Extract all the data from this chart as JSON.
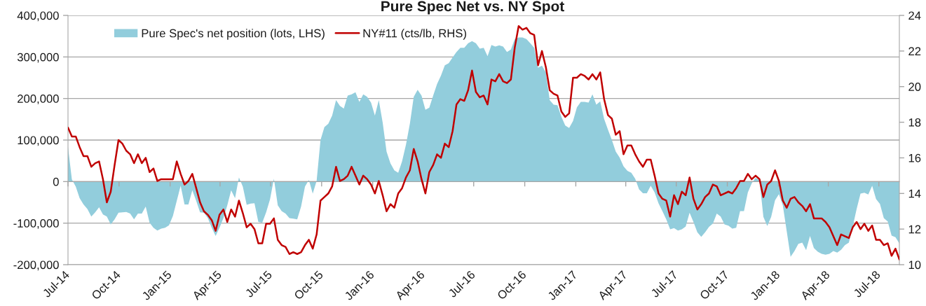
{
  "chart_data": {
    "type": "area",
    "title": "Pure Spec Net vs. NY Spot",
    "x": [
      "2014-07-01",
      "2014-07-08",
      "2014-07-15",
      "2014-07-22",
      "2014-07-29",
      "2014-08-05",
      "2014-08-12",
      "2014-08-19",
      "2014-08-26",
      "2014-09-02",
      "2014-09-09",
      "2014-09-16",
      "2014-09-23",
      "2014-09-30",
      "2014-10-07",
      "2014-10-14",
      "2014-10-21",
      "2014-10-28",
      "2014-11-04",
      "2014-11-11",
      "2014-11-18",
      "2014-11-25",
      "2014-12-02",
      "2014-12-09",
      "2014-12-16",
      "2014-12-23",
      "2014-12-30",
      "2015-01-06",
      "2015-01-13",
      "2015-01-20",
      "2015-01-27",
      "2015-02-03",
      "2015-02-10",
      "2015-02-17",
      "2015-02-24",
      "2015-03-03",
      "2015-03-10",
      "2015-03-17",
      "2015-03-24",
      "2015-03-31",
      "2015-04-07",
      "2015-04-14",
      "2015-04-21",
      "2015-04-28",
      "2015-05-05",
      "2015-05-12",
      "2015-05-19",
      "2015-05-26",
      "2015-06-02",
      "2015-06-09",
      "2015-06-16",
      "2015-06-23",
      "2015-06-30",
      "2015-07-07",
      "2015-07-14",
      "2015-07-21",
      "2015-07-28",
      "2015-08-04",
      "2015-08-11",
      "2015-08-18",
      "2015-08-25",
      "2015-09-01",
      "2015-09-08",
      "2015-09-15",
      "2015-09-22",
      "2015-09-29",
      "2015-10-06",
      "2015-10-13",
      "2015-10-20",
      "2015-10-27",
      "2015-11-03",
      "2015-11-10",
      "2015-11-17",
      "2015-11-24",
      "2015-12-01",
      "2015-12-08",
      "2015-12-15",
      "2015-12-22",
      "2015-12-29",
      "2016-01-05",
      "2016-01-12",
      "2016-01-19",
      "2016-01-26",
      "2016-02-02",
      "2016-02-09",
      "2016-02-16",
      "2016-02-23",
      "2016-03-01",
      "2016-03-08",
      "2016-03-15",
      "2016-03-22",
      "2016-03-29",
      "2016-04-05",
      "2016-04-12",
      "2016-04-19",
      "2016-04-26",
      "2016-05-03",
      "2016-05-10",
      "2016-05-17",
      "2016-05-24",
      "2016-05-31",
      "2016-06-07",
      "2016-06-14",
      "2016-06-21",
      "2016-06-28",
      "2016-07-05",
      "2016-07-12",
      "2016-07-19",
      "2016-07-26",
      "2016-08-02",
      "2016-08-09",
      "2016-08-16",
      "2016-08-23",
      "2016-08-30",
      "2016-09-06",
      "2016-09-13",
      "2016-09-20",
      "2016-09-27",
      "2016-10-04",
      "2016-10-11",
      "2016-10-18",
      "2016-10-25",
      "2016-11-01",
      "2016-11-08",
      "2016-11-15",
      "2016-11-22",
      "2016-11-29",
      "2016-12-06",
      "2016-12-13",
      "2016-12-20",
      "2016-12-27",
      "2017-01-03",
      "2017-01-10",
      "2017-01-17",
      "2017-01-24",
      "2017-01-31",
      "2017-02-07",
      "2017-02-14",
      "2017-02-21",
      "2017-02-28",
      "2017-03-07",
      "2017-03-14",
      "2017-03-21",
      "2017-03-28",
      "2017-04-04",
      "2017-04-11",
      "2017-04-18",
      "2017-04-25",
      "2017-05-02",
      "2017-05-09",
      "2017-05-16",
      "2017-05-23",
      "2017-05-30",
      "2017-06-06",
      "2017-06-13",
      "2017-06-20",
      "2017-06-27",
      "2017-07-04",
      "2017-07-11",
      "2017-07-18",
      "2017-07-25",
      "2017-08-01",
      "2017-08-08",
      "2017-08-15",
      "2017-08-22",
      "2017-08-29",
      "2017-09-05",
      "2017-09-12",
      "2017-09-19",
      "2017-09-26",
      "2017-10-03",
      "2017-10-10",
      "2017-10-17",
      "2017-10-24",
      "2017-10-31",
      "2017-11-07",
      "2017-11-14",
      "2017-11-21",
      "2017-11-28",
      "2017-12-05",
      "2017-12-12",
      "2017-12-19",
      "2017-12-26",
      "2018-01-02",
      "2018-01-09",
      "2018-01-16",
      "2018-01-23",
      "2018-01-30",
      "2018-02-06",
      "2018-02-13",
      "2018-02-20",
      "2018-02-27",
      "2018-03-06",
      "2018-03-13",
      "2018-03-20",
      "2018-03-27",
      "2018-04-03",
      "2018-04-10",
      "2018-04-17",
      "2018-04-24",
      "2018-05-01",
      "2018-05-08",
      "2018-05-15",
      "2018-05-22",
      "2018-05-29",
      "2018-06-05",
      "2018-06-12",
      "2018-06-19",
      "2018-06-26",
      "2018-07-03",
      "2018-07-10",
      "2018-07-17",
      "2018-07-24",
      "2018-07-31",
      "2018-08-07"
    ],
    "series": [
      {
        "name": "Pure Spec's net position (lots, LHS)",
        "color": "#92cddc",
        "values": [
          83000,
          5000,
          -12000,
          -40000,
          -55000,
          -66000,
          -84000,
          -74000,
          -62000,
          -79000,
          -84000,
          -103000,
          -91000,
          -75000,
          -74000,
          -73000,
          -77000,
          -91000,
          -77000,
          -77000,
          -60000,
          -99000,
          -111000,
          -118000,
          -113000,
          -111000,
          -105000,
          -83000,
          -46000,
          -10000,
          -55000,
          -55000,
          -21000,
          -46000,
          -74000,
          -75000,
          -88000,
          -111000,
          -131000,
          -111000,
          -88000,
          -57000,
          -21000,
          -40000,
          10000,
          -12000,
          -56000,
          -53000,
          -52000,
          -97000,
          -99000,
          -74000,
          -43000,
          7000,
          -57000,
          -71000,
          -77000,
          -88000,
          -89000,
          -91000,
          -60000,
          -12000,
          4000,
          -29000,
          2000,
          100000,
          131000,
          139000,
          159000,
          196000,
          182000,
          176000,
          207000,
          210000,
          215000,
          192000,
          210000,
          204000,
          190000,
          159000,
          196000,
          142000,
          72000,
          44000,
          27000,
          21000,
          49000,
          89000,
          139000,
          204000,
          221000,
          207000,
          173000,
          178000,
          207000,
          235000,
          255000,
          280000,
          285000,
          299000,
          312000,
          322000,
          322000,
          333000,
          338000,
          333000,
          320000,
          322000,
          302000,
          329000,
          325000,
          328000,
          325000,
          312000,
          318000,
          343000,
          347000,
          347000,
          343000,
          333000,
          322000,
          274000,
          279000,
          263000,
          196000,
          185000,
          184000,
          156000,
          135000,
          129000,
          146000,
          179000,
          192000,
          192000,
          190000,
          210000,
          185000,
          193000,
          151000,
          125000,
          100000,
          72000,
          58000,
          37000,
          26000,
          21000,
          7000,
          -19000,
          -28000,
          -28000,
          -10000,
          -26000,
          -52000,
          -71000,
          -91000,
          -115000,
          -112000,
          -118000,
          -115000,
          -108000,
          -75000,
          -97000,
          -122000,
          -133000,
          -122000,
          -109000,
          -101000,
          -77000,
          -84000,
          -103000,
          -106000,
          -113000,
          -111000,
          -71000,
          -71000,
          -26000,
          -4000,
          9000,
          3000,
          -85000,
          -107000,
          -85000,
          -45000,
          -30000,
          -57000,
          -119000,
          -181000,
          -167000,
          -150000,
          -147000,
          -165000,
          -131000,
          -160000,
          -169000,
          -174000,
          -176000,
          -174000,
          -167000,
          -171000,
          -164000,
          -153000,
          -147000,
          -108000,
          -66000,
          -29000,
          -27000,
          -31000,
          -10000,
          -42000,
          -54000,
          -88000,
          -96000,
          -130000,
          -134000,
          -149000
        ]
      },
      {
        "name": "NY#11 (cts/lb, RHS)",
        "type": "line",
        "axis": "y2",
        "color": "#c00000",
        "values": [
          17.7,
          17.2,
          17.2,
          16.6,
          16.1,
          16.1,
          15.5,
          15.7,
          15.8,
          14.8,
          13.5,
          14.1,
          15.6,
          17.0,
          16.8,
          16.4,
          16.2,
          15.7,
          16.2,
          15.7,
          16.0,
          15.2,
          15.4,
          14.7,
          14.8,
          14.8,
          14.8,
          14.8,
          15.8,
          15.1,
          14.5,
          14.7,
          15.1,
          14.3,
          13.5,
          13.0,
          12.8,
          12.5,
          11.9,
          12.8,
          13.1,
          12.4,
          13.1,
          12.7,
          13.6,
          12.9,
          12.1,
          12.3,
          12.0,
          11.2,
          11.2,
          12.3,
          12.3,
          12.6,
          11.4,
          11.1,
          11.0,
          10.6,
          10.7,
          10.6,
          10.7,
          11.1,
          11.4,
          10.9,
          11.7,
          13.6,
          13.8,
          14.0,
          14.4,
          15.5,
          14.7,
          14.8,
          15.0,
          15.5,
          15.0,
          14.5,
          15.0,
          14.8,
          14.5,
          14.0,
          14.7,
          13.9,
          13.0,
          13.4,
          13.2,
          14.0,
          14.3,
          14.9,
          15.3,
          16.5,
          15.8,
          14.8,
          14.0,
          15.2,
          15.6,
          16.2,
          16.0,
          16.8,
          16.6,
          17.5,
          19.0,
          19.3,
          19.2,
          19.8,
          20.9,
          19.7,
          19.4,
          19.5,
          19.0,
          20.4,
          20.3,
          20.7,
          20.3,
          20.2,
          20.4,
          22.2,
          23.4,
          23.2,
          23.3,
          23.0,
          22.9,
          21.2,
          22.0,
          21.1,
          19.8,
          19.6,
          19.5,
          18.6,
          18.3,
          18.5,
          20.5,
          20.5,
          20.7,
          20.6,
          20.4,
          20.7,
          20.4,
          20.8,
          19.3,
          18.4,
          18.2,
          17.3,
          17.5,
          16.2,
          16.7,
          16.7,
          16.2,
          15.8,
          15.5,
          15.9,
          15.9,
          15.0,
          14.0,
          13.7,
          13.6,
          12.7,
          13.9,
          13.4,
          14.1,
          13.9,
          14.9,
          13.7,
          13.1,
          13.4,
          13.8,
          14.0,
          14.5,
          14.4,
          13.9,
          14.0,
          14.1,
          14.0,
          14.3,
          14.7,
          14.7,
          15.1,
          14.8,
          15.0,
          14.8,
          13.8,
          14.5,
          14.7,
          15.3,
          14.7,
          13.6,
          13.2,
          13.7,
          13.8,
          13.5,
          13.3,
          13.0,
          13.4,
          12.6,
          12.6,
          12.6,
          12.4,
          12.1,
          11.6,
          11.1,
          11.7,
          11.6,
          11.5,
          12.1,
          12.4,
          12.0,
          12.3,
          11.9,
          12.2,
          11.4,
          11.4,
          11.1,
          11.2,
          10.5,
          10.9,
          10.3
        ]
      }
    ],
    "xlim": [
      "2014-07-01",
      "2018-08-07"
    ],
    "xticks": [
      {
        "value": "2014-07-01",
        "label": "Jul-14"
      },
      {
        "value": "2014-10-01",
        "label": "Oct-14"
      },
      {
        "value": "2015-01-01",
        "label": "Jan-15"
      },
      {
        "value": "2015-04-01",
        "label": "Apr-15"
      },
      {
        "value": "2015-07-01",
        "label": "Jul-15"
      },
      {
        "value": "2015-10-01",
        "label": "Oct-15"
      },
      {
        "value": "2016-01-01",
        "label": "Jan-16"
      },
      {
        "value": "2016-04-01",
        "label": "Apr-16"
      },
      {
        "value": "2016-07-01",
        "label": "Jul-16"
      },
      {
        "value": "2016-10-01",
        "label": "Oct-16"
      },
      {
        "value": "2017-01-01",
        "label": "Jan-17"
      },
      {
        "value": "2017-04-01",
        "label": "Apr-17"
      },
      {
        "value": "2017-07-01",
        "label": "Jul-17"
      },
      {
        "value": "2017-10-01",
        "label": "Oct-17"
      },
      {
        "value": "2018-01-01",
        "label": "Jan-18"
      },
      {
        "value": "2018-04-01",
        "label": "Apr-18"
      },
      {
        "value": "2018-07-01",
        "label": "Jul-18"
      }
    ],
    "ylim": [
      -200000,
      400000
    ],
    "yticks": [
      {
        "value": -200000,
        "label": "-200,000"
      },
      {
        "value": -100000,
        "label": "-100,000"
      },
      0,
      {
        "value": 100000,
        "label": "100,000"
      },
      {
        "value": 200000,
        "label": "200,000"
      },
      {
        "value": 300000,
        "label": "300,000"
      },
      {
        "value": 400000,
        "label": "400,000"
      }
    ],
    "y2lim": [
      10,
      24
    ],
    "y2ticks": [
      10,
      12,
      14,
      16,
      18,
      20,
      22,
      24
    ],
    "grid": "y",
    "legend": "top left"
  }
}
